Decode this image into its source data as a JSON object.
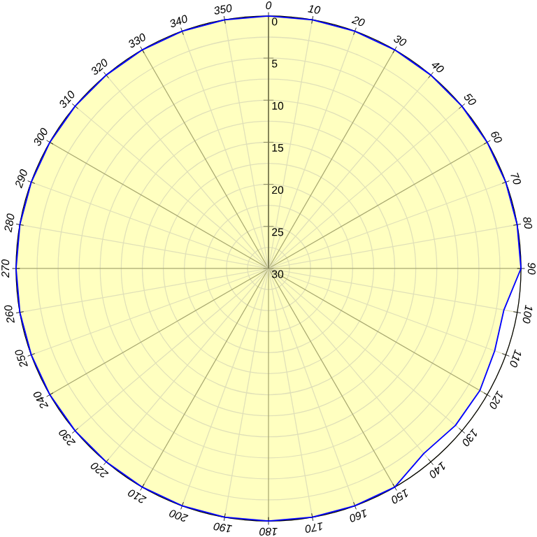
{
  "chart_data": {
    "type": "radar",
    "categories": [
      "0",
      "10",
      "20",
      "30",
      "40",
      "50",
      "60",
      "70",
      "80",
      "90",
      "100",
      "110",
      "120",
      "130",
      "140",
      "150",
      "160",
      "170",
      "180",
      "190",
      "200",
      "210",
      "220",
      "230",
      "240",
      "250",
      "260",
      "270",
      "280",
      "290",
      "300",
      "310",
      "320",
      "330",
      "340",
      "350"
    ],
    "ylim": [
      30,
      0
    ],
    "yticks": [
      0,
      5,
      10,
      15,
      20,
      25,
      30
    ],
    "grid": true,
    "series": [
      {
        "color": "#0000ff",
        "values": [
          0,
          0,
          0,
          0,
          0,
          0,
          0,
          0,
          0,
          0,
          1.6,
          1.4,
          1.0,
          1.0,
          1.3,
          0,
          0,
          0,
          0,
          0,
          0,
          0,
          0,
          0,
          0,
          0,
          0,
          0,
          0,
          0,
          0,
          0,
          0,
          0,
          0,
          0
        ]
      }
    ]
  }
}
